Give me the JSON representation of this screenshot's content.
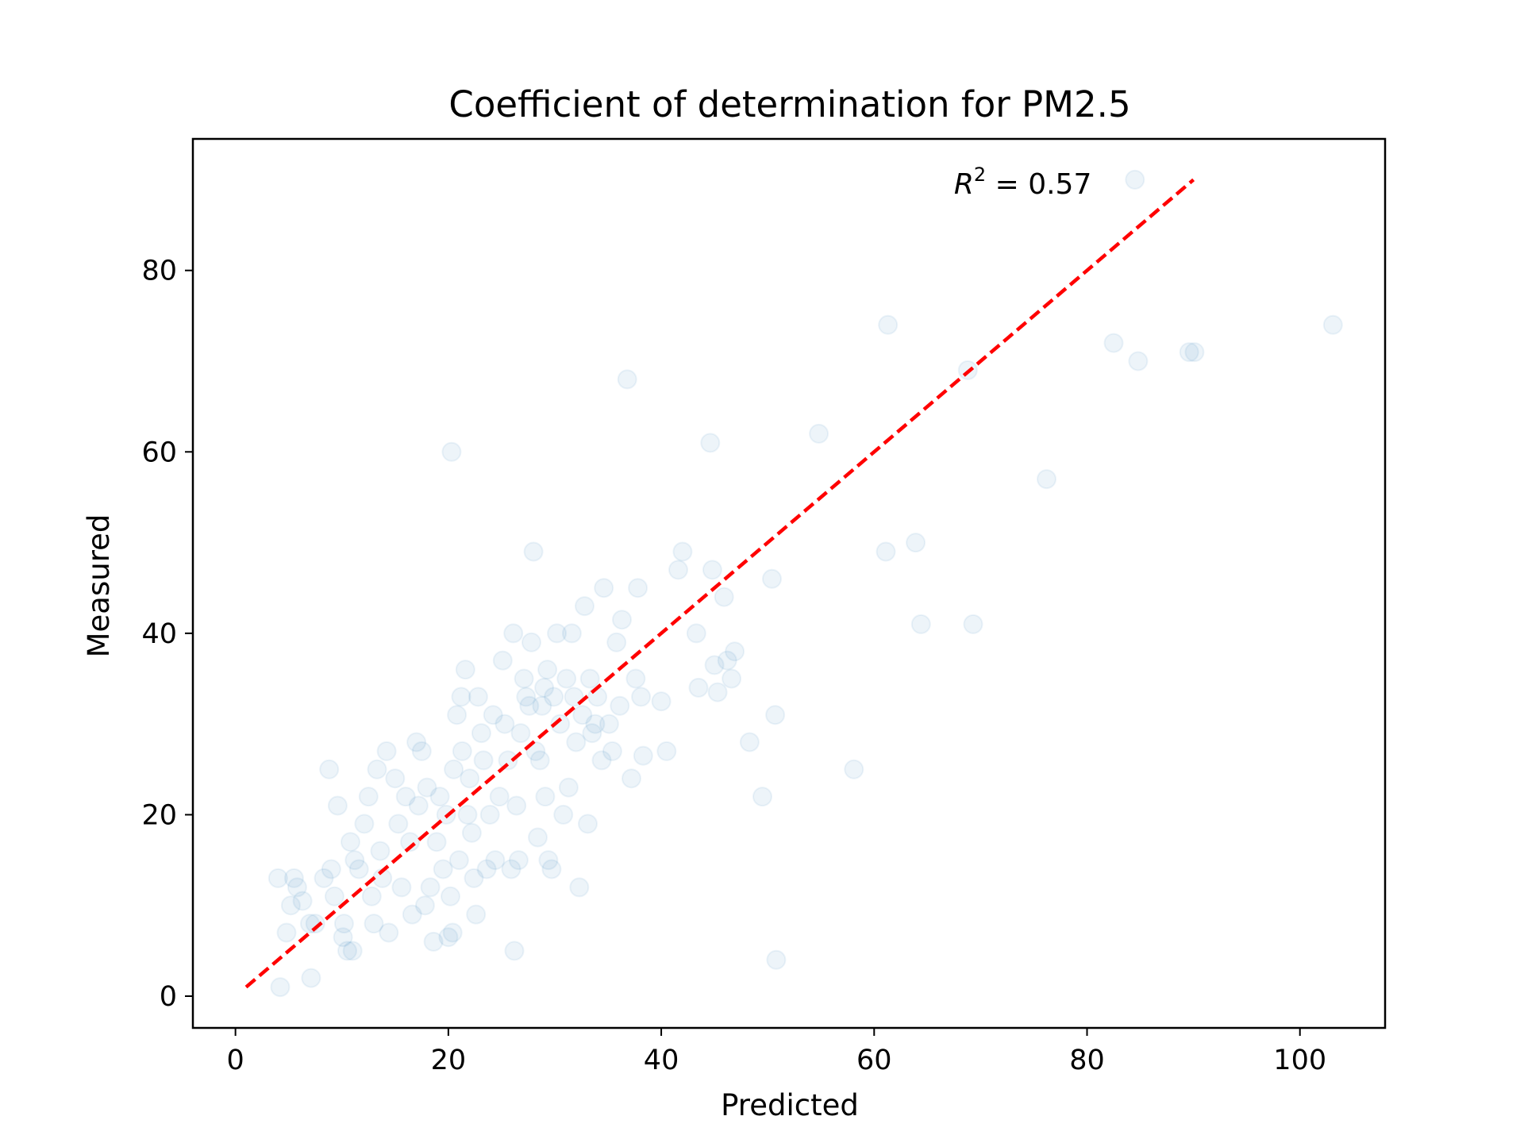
{
  "chart_data": {
    "type": "scatter",
    "title": "Coefficient of determination for PM2.5",
    "xlabel": "Predicted",
    "ylabel": "Measured",
    "xlim": [
      -4,
      108
    ],
    "ylim": [
      -3.5,
      94.5
    ],
    "xticks": [
      0,
      20,
      40,
      60,
      80,
      100
    ],
    "yticks": [
      0,
      20,
      40,
      60,
      80
    ],
    "xtick_labels": [
      "0",
      "20",
      "40",
      "60",
      "80",
      "100"
    ],
    "ytick_labels": [
      "0",
      "20",
      "40",
      "60",
      "80"
    ],
    "grid": false,
    "legend": "none",
    "annotation": {
      "prefix": "R",
      "superscript": "2",
      "text": " = 0.57",
      "x": 67.5,
      "y": 89.5
    },
    "point_color": "#1f77b4",
    "point_alpha": 0.08,
    "fit_line": {
      "color": "#ff0000",
      "style": "dashed",
      "x": [
        1,
        90
      ],
      "y": [
        1,
        90
      ]
    },
    "points": [
      [
        4.2,
        1
      ],
      [
        7.1,
        2
      ],
      [
        4.8,
        7
      ],
      [
        4,
        13
      ],
      [
        5.5,
        13
      ],
      [
        5.2,
        10
      ],
      [
        5.8,
        12
      ],
      [
        6.3,
        10.5
      ],
      [
        7,
        8
      ],
      [
        7.5,
        8
      ],
      [
        8.3,
        13
      ],
      [
        9,
        14
      ],
      [
        8.8,
        25
      ],
      [
        9.6,
        21
      ],
      [
        9.3,
        11
      ],
      [
        10.2,
        8
      ],
      [
        10.1,
        6.5
      ],
      [
        10.5,
        5
      ],
      [
        11,
        5
      ],
      [
        10.8,
        17
      ],
      [
        11.2,
        15
      ],
      [
        11.6,
        14
      ],
      [
        12.1,
        19
      ],
      [
        12.5,
        22
      ],
      [
        12.8,
        11
      ],
      [
        13,
        8
      ],
      [
        13.3,
        25
      ],
      [
        13.6,
        16
      ],
      [
        14.2,
        27
      ],
      [
        14.4,
        7
      ],
      [
        13.8,
        13
      ],
      [
        15,
        24
      ],
      [
        15.3,
        19
      ],
      [
        15.6,
        12
      ],
      [
        16,
        22
      ],
      [
        16.4,
        17
      ],
      [
        16.6,
        9
      ],
      [
        17,
        28
      ],
      [
        17.2,
        21
      ],
      [
        17.5,
        27
      ],
      [
        17.8,
        10
      ],
      [
        18,
        23
      ],
      [
        18.3,
        12
      ],
      [
        18.6,
        6
      ],
      [
        18.9,
        17
      ],
      [
        19.2,
        22
      ],
      [
        19.5,
        14
      ],
      [
        19.8,
        20
      ],
      [
        20,
        6.5
      ],
      [
        20.2,
        11
      ],
      [
        20.4,
        7
      ],
      [
        20.5,
        25
      ],
      [
        20.8,
        31
      ],
      [
        21,
        15
      ],
      [
        21.2,
        33
      ],
      [
        21.3,
        27
      ],
      [
        21.6,
        36
      ],
      [
        21.8,
        20
      ],
      [
        22,
        24
      ],
      [
        22.2,
        18
      ],
      [
        22.4,
        13
      ],
      [
        22.6,
        9
      ],
      [
        22.8,
        33
      ],
      [
        23.1,
        29
      ],
      [
        23.3,
        26
      ],
      [
        23.6,
        14
      ],
      [
        23.9,
        20
      ],
      [
        24.2,
        31
      ],
      [
        24.4,
        15
      ],
      [
        24.8,
        22
      ],
      [
        25.1,
        37
      ],
      [
        25.3,
        30
      ],
      [
        25.6,
        26
      ],
      [
        25.9,
        14
      ],
      [
        26.1,
        40
      ],
      [
        26.2,
        5
      ],
      [
        26.4,
        21
      ],
      [
        26.6,
        15
      ],
      [
        26.8,
        29
      ],
      [
        27.1,
        35
      ],
      [
        27.3,
        33
      ],
      [
        27.6,
        32
      ],
      [
        27.8,
        39
      ],
      [
        28,
        49
      ],
      [
        28.2,
        27
      ],
      [
        28.4,
        17.5
      ],
      [
        28.6,
        26
      ],
      [
        28.8,
        32
      ],
      [
        29,
        34
      ],
      [
        29.1,
        22
      ],
      [
        29.3,
        36
      ],
      [
        29.4,
        15
      ],
      [
        29.7,
        14
      ],
      [
        29.9,
        33
      ],
      [
        30.2,
        40
      ],
      [
        30.5,
        30
      ],
      [
        30.8,
        20
      ],
      [
        31.1,
        35
      ],
      [
        31.3,
        23
      ],
      [
        31.6,
        40
      ],
      [
        31.8,
        33
      ],
      [
        32,
        28
      ],
      [
        32.3,
        12
      ],
      [
        32.6,
        31
      ],
      [
        32.8,
        43
      ],
      [
        33.1,
        19
      ],
      [
        33.3,
        35
      ],
      [
        33.5,
        29
      ],
      [
        33.8,
        30
      ],
      [
        34,
        33
      ],
      [
        34.4,
        26
      ],
      [
        34.6,
        45
      ],
      [
        35.1,
        30
      ],
      [
        35.4,
        27
      ],
      [
        35.8,
        39
      ],
      [
        36.1,
        32
      ],
      [
        36.3,
        41.5
      ],
      [
        36.8,
        68
      ],
      [
        37.2,
        24
      ],
      [
        37.6,
        35
      ],
      [
        37.8,
        45
      ],
      [
        38.1,
        33
      ],
      [
        38.3,
        26.5
      ],
      [
        40,
        32.5
      ],
      [
        40.5,
        27
      ],
      [
        41.6,
        47
      ],
      [
        42,
        49
      ],
      [
        43.5,
        34
      ],
      [
        43.3,
        40
      ],
      [
        44.6,
        61
      ],
      [
        44.8,
        47
      ],
      [
        45,
        36.5
      ],
      [
        45.3,
        33.5
      ],
      [
        45.9,
        44
      ],
      [
        46.2,
        37
      ],
      [
        46.6,
        35
      ],
      [
        46.9,
        38
      ],
      [
        48.3,
        28
      ],
      [
        49.5,
        22
      ],
      [
        50.4,
        46
      ],
      [
        50.7,
        31
      ],
      [
        50.8,
        4
      ],
      [
        20.3,
        60
      ],
      [
        54.8,
        62
      ],
      [
        58.1,
        25
      ],
      [
        61.1,
        49
      ],
      [
        61.3,
        74
      ],
      [
        63.9,
        50
      ],
      [
        64.4,
        41
      ],
      [
        68.8,
        69
      ],
      [
        69.3,
        41
      ],
      [
        76.2,
        57
      ],
      [
        82.5,
        72
      ],
      [
        84.5,
        90
      ],
      [
        84.8,
        70
      ],
      [
        89.6,
        71
      ],
      [
        90.1,
        71
      ],
      [
        103.1,
        74
      ]
    ]
  }
}
